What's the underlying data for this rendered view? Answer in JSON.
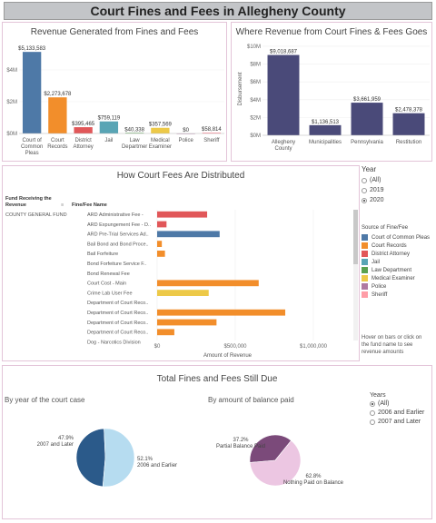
{
  "page_title": "Court Fines and Fees in Allegheny County",
  "chart_data": [
    {
      "id": "revenue-generated",
      "type": "bar",
      "title": "Revenue Generated from Fines and Fees",
      "categories": [
        "Court of Common Pleas",
        "Court Records",
        "District Attorney",
        "Jail",
        "Law Department",
        "Medical Examiner",
        "Police",
        "Sheriff"
      ],
      "category_lines": [
        [
          "Court of",
          "Common",
          "Pleas"
        ],
        [
          "Court",
          "Records"
        ],
        [
          "District",
          "Attorney"
        ],
        [
          "Jail"
        ],
        [
          "Law",
          "Departmer"
        ],
        [
          "Medical",
          "Examiner"
        ],
        [
          "Police"
        ],
        [
          "Sheriff"
        ]
      ],
      "values": [
        5133583,
        2273678,
        395465,
        759119,
        40338,
        357569,
        0,
        58814
      ],
      "value_labels": [
        "$5,133,583",
        "$2,273,678",
        "$395,465",
        "$759,119",
        "$40,338",
        "$357,569",
        "$0",
        "$58,814"
      ],
      "colors": [
        "#4e79a7",
        "#f28e2b",
        "#e15759",
        "#59a5b5",
        "#59a14f",
        "#edc948",
        "#b07aa1",
        "#ff9da7"
      ],
      "yticks": [
        0,
        2000000,
        4000000
      ],
      "ytick_labels": [
        "$0M",
        "$2M",
        "$4M"
      ],
      "ylim": [
        0,
        5600000
      ]
    },
    {
      "id": "revenue-destination",
      "type": "bar",
      "title": "Where Revenue from Court Fines & Fees Goes",
      "ylabel": "Disbursement",
      "categories": [
        "Allegheny County",
        "Municipalities",
        "Pennsylvania",
        "Restitution"
      ],
      "category_lines": [
        [
          "Allegheny",
          "County"
        ],
        [
          "Municipalities"
        ],
        [
          "Pennsylvania"
        ],
        [
          "Restitution"
        ]
      ],
      "values": [
        9018687,
        1136513,
        3661959,
        2478378
      ],
      "value_labels": [
        "$9,018,687",
        "$1,136,513",
        "$3,661,959",
        "$2,478,378"
      ],
      "color": "#4a4a79",
      "yticks": [
        0,
        2000000,
        4000000,
        6000000,
        8000000,
        10000000
      ],
      "ytick_labels": [
        "$0M",
        "$2M",
        "$4M",
        "$6M",
        "$8M",
        "$10M"
      ],
      "ylim": [
        0,
        10400000
      ]
    },
    {
      "id": "fees-distributed",
      "type": "bar",
      "orientation": "horizontal",
      "title": "How Court Fees Are Distributed",
      "row_header": "Fund Receiving the Revenue",
      "col_header": "Fine/Fee Name",
      "fund": "COUNTY GENERAL FUND",
      "xlabel": "Amount of Revenue",
      "rows": [
        {
          "name": "ARD Administrative Fee -",
          "value": 320000,
          "color": "#e15759"
        },
        {
          "name": "ARD Expungement Fee - D..",
          "value": 60000,
          "color": "#e15759"
        },
        {
          "name": "ARD Pre-Trial Services Ad..",
          "value": 400000,
          "color": "#4e79a7"
        },
        {
          "name": "Bail Bond and Bond Proce..",
          "value": 30000,
          "color": "#f28e2b"
        },
        {
          "name": "Bail Forfeiture",
          "value": 50000,
          "color": "#f28e2b"
        },
        {
          "name": "Bond Forfeiture Service F..",
          "value": 0,
          "color": "#f28e2b"
        },
        {
          "name": "Bond Renewal Fee",
          "value": 0,
          "color": "#f28e2b"
        },
        {
          "name": "Court Cost - Main",
          "value": 650000,
          "color": "#f28e2b"
        },
        {
          "name": "Crime Lab User Fee",
          "value": 330000,
          "color": "#edc948"
        },
        {
          "name": "Department of Court Reco..",
          "value": 0,
          "color": "#f28e2b"
        },
        {
          "name": "Department of Court Reco..",
          "value": 820000,
          "color": "#f28e2b"
        },
        {
          "name": "Department of Court Reco..",
          "value": 380000,
          "color": "#f28e2b"
        },
        {
          "name": "Department of Court Reco..",
          "value": 110000,
          "color": "#f28e2b"
        },
        {
          "name": "Dog - Narcotics Division",
          "value": 0,
          "color": "#e15759"
        }
      ],
      "xticks": [
        0,
        500000,
        1000000
      ],
      "xtick_labels": [
        "$0",
        "$500,000",
        "$1,000,000"
      ],
      "xlim": [
        0,
        1250000
      ]
    },
    {
      "id": "due-by-year",
      "type": "pie",
      "title": "By year of the court case",
      "slices": [
        {
          "name": "2007 and Later",
          "value": 47.9,
          "label": "47.9%",
          "color": "#2b5a8a"
        },
        {
          "name": "2006 and Earlier",
          "value": 52.1,
          "label": "52.1%",
          "color": "#b6dcf0"
        }
      ]
    },
    {
      "id": "due-by-balance",
      "type": "pie",
      "title": "By amount of balance paid",
      "slices": [
        {
          "name": "Partial Balance Paid",
          "value": 37.2,
          "label": "37.2%",
          "color": "#7b4a7a"
        },
        {
          "name": "Nothing Paid on Balance",
          "value": 62.8,
          "label": "62.8%",
          "color": "#ecc6e2"
        }
      ]
    }
  ],
  "year_filter": {
    "label": "Year",
    "options": [
      "(All)",
      "2019",
      "2020"
    ],
    "selected": 2
  },
  "source_legend": {
    "title": "Source of Fine/Fee",
    "items": [
      {
        "name": "Court of Common Pleas",
        "color": "#4e79a7"
      },
      {
        "name": "Court Records",
        "color": "#f28e2b"
      },
      {
        "name": "District Attorney",
        "color": "#e15759"
      },
      {
        "name": "Jail",
        "color": "#59a5b5"
      },
      {
        "name": "Law Department",
        "color": "#59a14f"
      },
      {
        "name": "Medical Examiner",
        "color": "#edc948"
      },
      {
        "name": "Police",
        "color": "#b07aa1"
      },
      {
        "name": "Sheriff",
        "color": "#ff9da7"
      }
    ]
  },
  "hover_note": "Hover on bars or click on the fund name to see revenue amounts",
  "still_due": {
    "title": "Total Fines and Fees Still Due"
  },
  "years_filter": {
    "label": "Years",
    "options": [
      "(All)",
      "2006 and Earlier",
      "2007 and Later"
    ],
    "selected": 0
  },
  "icons": {
    "sort": "sort-icon"
  }
}
